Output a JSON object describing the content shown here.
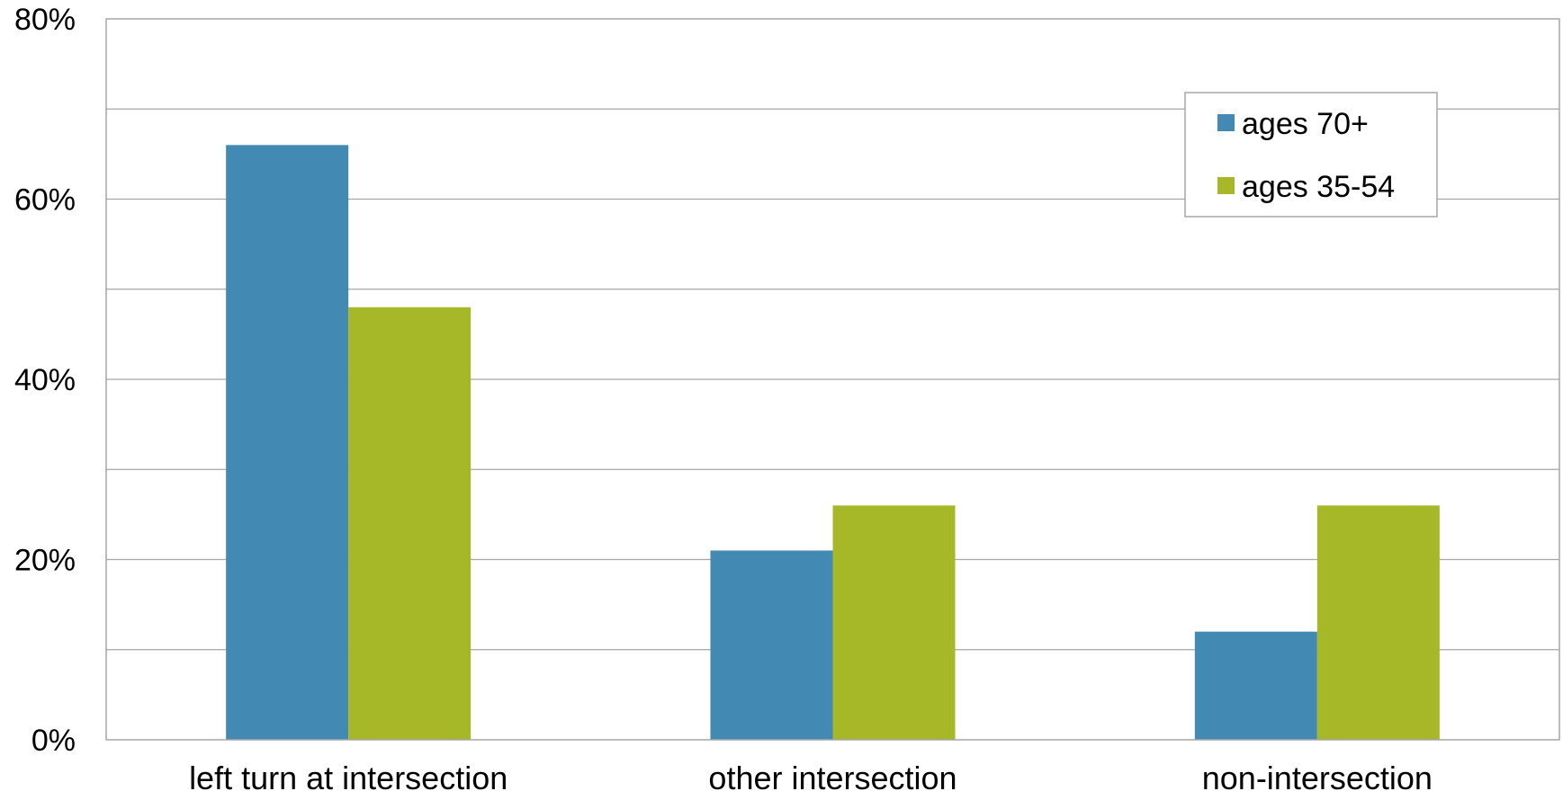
{
  "chart_data": {
    "type": "bar",
    "categories": [
      "left turn at intersection",
      "other intersection",
      "non-intersection"
    ],
    "series": [
      {
        "name": "ages 70+",
        "values": [
          66,
          21,
          12
        ],
        "color": "#4289B3"
      },
      {
        "name": "ages 35-54",
        "values": [
          48,
          26,
          26
        ],
        "color": "#A6B828"
      }
    ],
    "y_ticks": [
      "0%",
      "20%",
      "40%",
      "60%",
      "80%"
    ],
    "ylim": [
      0,
      80
    ],
    "ytick_step": 20,
    "grid_step": 10,
    "grid": true,
    "legend_position": "top-right",
    "title": "",
    "xlabel": "",
    "ylabel": ""
  }
}
